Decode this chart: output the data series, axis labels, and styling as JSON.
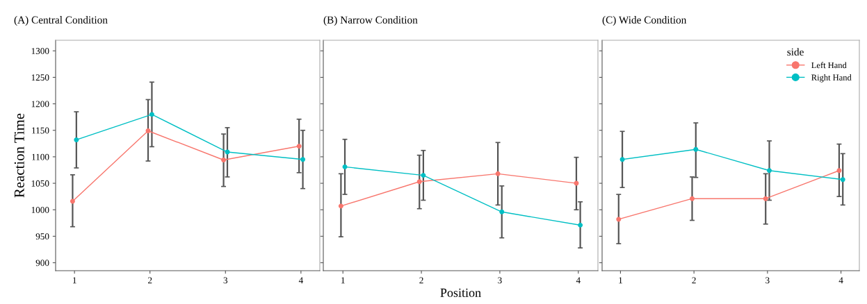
{
  "chart_data": [
    {
      "type": "line",
      "title": "(A) Central Condition",
      "ylabel": "Reaction Time",
      "categories": [
        "1",
        "2",
        "3",
        "4"
      ],
      "ylim": [
        885,
        1320
      ],
      "yticks": [
        900,
        950,
        1000,
        1050,
        1100,
        1150,
        1200,
        1250,
        1300
      ],
      "marker": "circle",
      "grid": false,
      "series": [
        {
          "color": "#f8766d",
          "values": [
            1016,
            1149,
            1094,
            1120
          ],
          "errors": [
            [
              968,
              1066
            ],
            [
              1092,
              1208
            ],
            [
              1044,
              1143
            ],
            [
              1070,
              1171
            ]
          ]
        },
        {
          "color": "#00bfc4",
          "values": [
            1132,
            1180,
            1109,
            1095
          ],
          "errors": [
            [
              1079,
              1185
            ],
            [
              1119,
              1241
            ],
            [
              1062,
              1155
            ],
            [
              1040,
              1150
            ]
          ]
        }
      ]
    },
    {
      "type": "line",
      "title": "(B) Narrow Condition",
      "xlabel": "Position",
      "categories": [
        "1",
        "2",
        "3",
        "4"
      ],
      "ylim": [
        885,
        1320
      ],
      "yticks": [
        900,
        950,
        1000,
        1050,
        1100,
        1150,
        1200,
        1250,
        1300
      ],
      "tick_labels": "x",
      "marker": "circle",
      "grid": false,
      "series": [
        {
          "color": "#f8766d",
          "values": [
            1007,
            1053,
            1068,
            1050
          ],
          "errors": [
            [
              949,
              1068
            ],
            [
              1002,
              1103
            ],
            [
              1009,
              1127
            ],
            [
              1000,
              1099
            ]
          ]
        },
        {
          "color": "#00bfc4",
          "values": [
            1081,
            1065,
            996,
            971
          ],
          "errors": [
            [
              1029,
              1133
            ],
            [
              1018,
              1112
            ],
            [
              947,
              1045
            ],
            [
              928,
              1015
            ]
          ]
        }
      ]
    },
    {
      "type": "line",
      "title": "(C) Wide Condition",
      "legend_title": "side",
      "categories": [
        "1",
        "2",
        "3",
        "4"
      ],
      "ylim": [
        885,
        1320
      ],
      "yticks": [
        900,
        950,
        1000,
        1050,
        1100,
        1150,
        1200,
        1250,
        1300
      ],
      "tick_labels": "x",
      "marker": "circle",
      "grid": false,
      "legend": "top right",
      "series": [
        {
          "name": "Left Hand",
          "color": "#f8766d",
          "values": [
            982,
            1021,
            1021,
            1074
          ],
          "errors": [
            [
              936,
              1029
            ],
            [
              980,
              1062
            ],
            [
              973,
              1068
            ],
            [
              1025,
              1124
            ]
          ]
        },
        {
          "name": "Right Hand",
          "color": "#00bfc4",
          "values": [
            1095,
            1114,
            1074,
            1057
          ],
          "errors": [
            [
              1042,
              1148
            ],
            [
              1061,
              1164
            ],
            [
              1018,
              1130
            ],
            [
              1009,
              1106
            ]
          ]
        }
      ]
    }
  ]
}
